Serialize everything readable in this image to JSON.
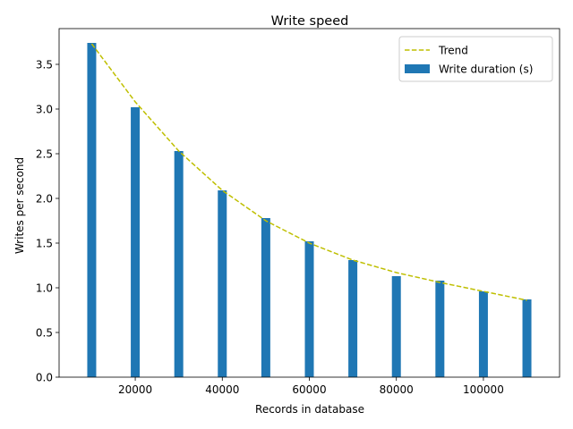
{
  "chart_data": {
    "type": "bar",
    "title": "Write speed",
    "xlabel": "Records in database",
    "ylabel": "Writes per second",
    "x": [
      10000,
      20000,
      30000,
      40000,
      50000,
      60000,
      70000,
      80000,
      90000,
      100000,
      110000
    ],
    "series": [
      {
        "name": "Write duration (s)",
        "kind": "bar",
        "color": "#1f77b4",
        "values": [
          3.74,
          3.02,
          2.53,
          2.09,
          1.78,
          1.52,
          1.31,
          1.13,
          1.08,
          0.96,
          0.87
        ]
      },
      {
        "name": "Trend",
        "kind": "line",
        "style": "dashed",
        "color": "#bfbf00",
        "values": [
          3.73,
          3.08,
          2.53,
          2.09,
          1.75,
          1.5,
          1.31,
          1.17,
          1.06,
          0.96,
          0.86
        ]
      }
    ],
    "xlim": [
      2500,
      117500
    ],
    "ylim": [
      0,
      3.9
    ],
    "xticks": [
      20000,
      40000,
      60000,
      80000,
      100000
    ],
    "yticks": [
      0.0,
      0.5,
      1.0,
      1.5,
      2.0,
      2.5,
      3.0,
      3.5
    ],
    "xtick_labels": [
      "20000",
      "40000",
      "60000",
      "80000",
      "100000"
    ],
    "ytick_labels": [
      "0.0",
      "0.5",
      "1.0",
      "1.5",
      "2.0",
      "2.5",
      "3.0",
      "3.5"
    ],
    "legend": {
      "position": "top-right",
      "entries": [
        "Trend",
        "Write duration (s)"
      ]
    },
    "grid": false
  }
}
